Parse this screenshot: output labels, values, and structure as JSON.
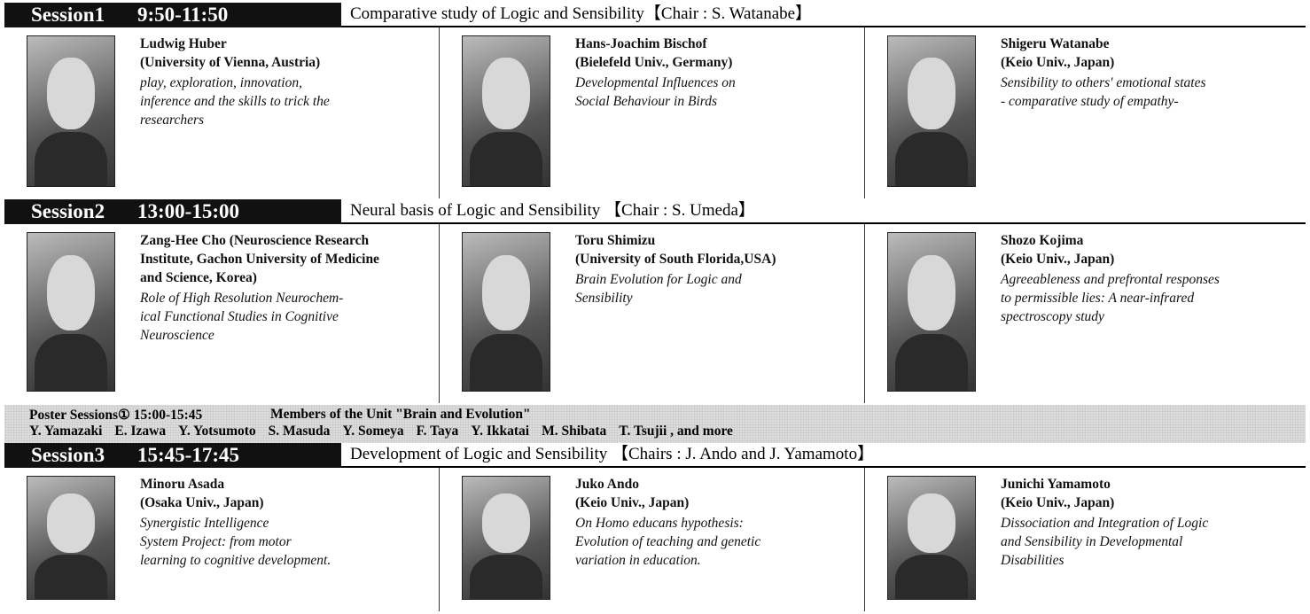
{
  "sessions": [
    {
      "label": "Session1",
      "time": "9:50-11:50",
      "title": "Comparative study of Logic and Sensibility【Chair : S. Watanabe】",
      "speakers": [
        {
          "name_lines": [
            "Ludwig Huber",
            "(University of Vienna, Austria)"
          ],
          "talk_lines": [
            "play, exploration, innovation,",
            "inference and the skills to trick the",
            "researchers"
          ]
        },
        {
          "name_lines": [
            "Hans-Joachim Bischof",
            "(Bielefeld Univ., Germany)"
          ],
          "talk_lines": [
            "Developmental Influences on",
            "Social Behaviour in Birds"
          ]
        },
        {
          "name_lines": [
            "Shigeru Watanabe",
            "(Keio Univ., Japan)"
          ],
          "talk_lines": [
            "Sensibility to others' emotional states",
            "- comparative study of empathy-"
          ]
        }
      ]
    },
    {
      "label": "Session2",
      "time": "13:00-15:00",
      "title": "Neural basis of Logic and Sensibility 【Chair : S. Umeda】",
      "speakers": [
        {
          "name_lines": [
            "Zang-Hee Cho (Neuroscience Research",
            "Institute, Gachon University of Medicine",
            "and Science, Korea)"
          ],
          "talk_lines": [
            "Role of High Resolution Neurochem-",
            "ical Functional Studies in Cognitive",
            "Neuroscience"
          ]
        },
        {
          "name_lines": [
            "Toru Shimizu",
            "(University of South Florida,USA)"
          ],
          "talk_lines": [
            "Brain Evolution for Logic and",
            "Sensibility"
          ]
        },
        {
          "name_lines": [
            "Shozo Kojima",
            "(Keio Univ., Japan)"
          ],
          "talk_lines": [
            "Agreeableness and prefrontal responses",
            " to permissible lies: A near-infrared",
            "spectroscopy study"
          ]
        }
      ]
    },
    {
      "label": "Session3",
      "time": "15:45-17:45",
      "title": "Development of Logic and Sensibility 【Chairs : J. Ando and J. Yamamoto】",
      "speakers": [
        {
          "name_lines": [
            "Minoru Asada",
            "(Osaka Univ., Japan)"
          ],
          "talk_lines": [
            "Synergistic Intelligence",
            "System Project: from motor",
            "learning to cognitive development."
          ]
        },
        {
          "name_lines": [
            "Juko Ando",
            "(Keio Univ., Japan)"
          ],
          "talk_lines": [
            "On Homo educans hypothesis:",
            "Evolution of teaching and genetic",
            "variation in education."
          ]
        },
        {
          "name_lines": [
            "Junichi Yamamoto",
            "(Keio Univ., Japan)"
          ],
          "talk_lines": [
            "Dissociation and Integration of Logic",
            "and Sensibility in Developmental",
            "Disabilities"
          ]
        }
      ]
    }
  ],
  "poster": {
    "heading": "Poster Sessions① 15:00-15:45",
    "unit": "Members of the Unit \"Brain and Evolution\"",
    "members": [
      "Y. Yamazaki",
      "E. Izawa",
      "Y. Yotsumoto",
      "S. Masuda",
      "Y. Someya",
      "F. Taya",
      "Y. Ikkatai",
      "M. Shibata",
      "T. Tsujii , and more"
    ]
  }
}
